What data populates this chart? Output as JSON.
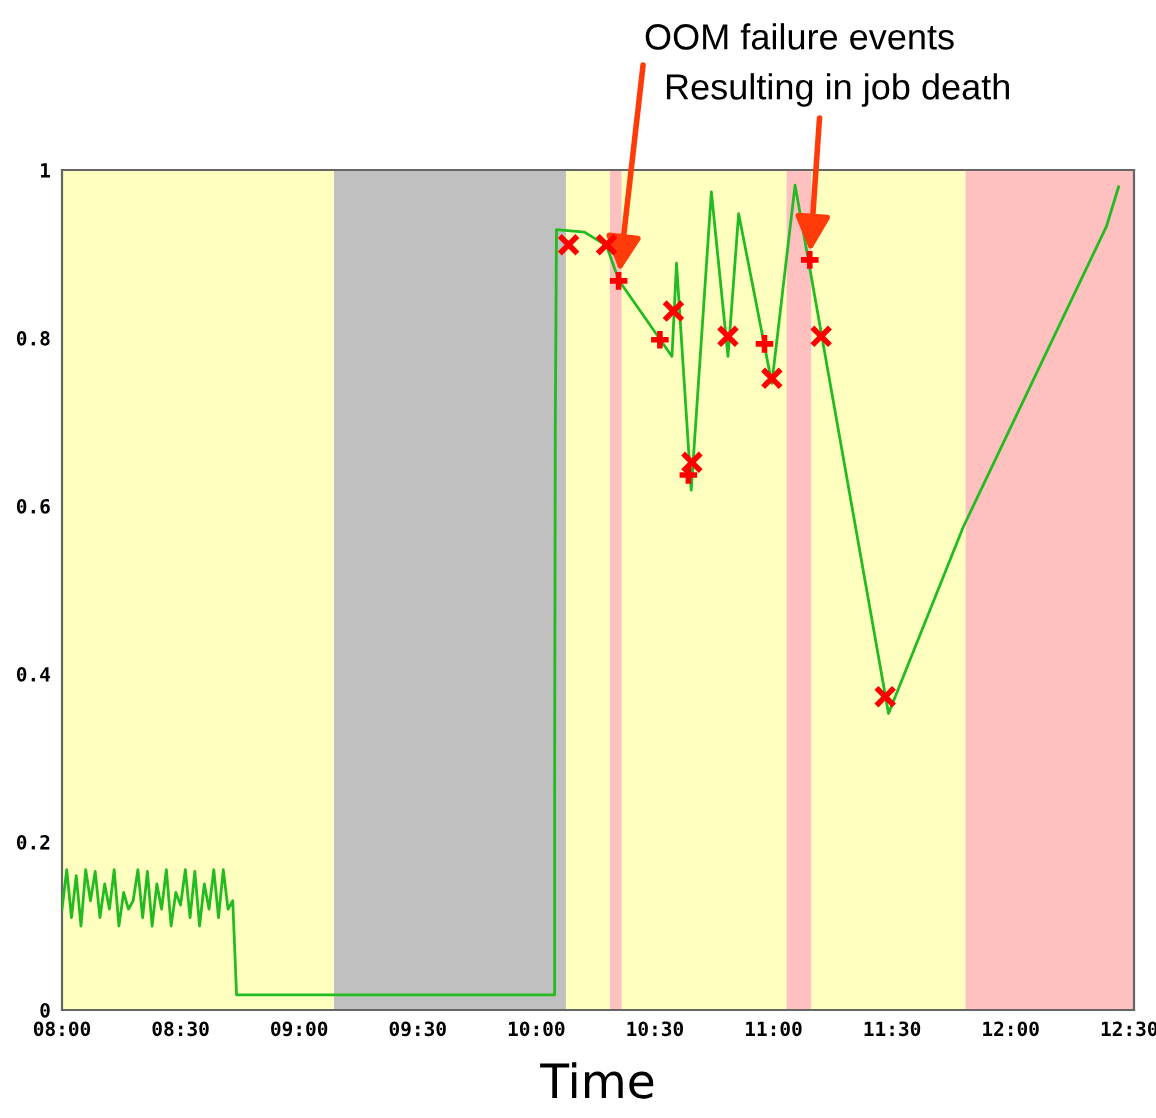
{
  "chart_data": {
    "type": "line",
    "xlabel": "Time",
    "xlim": [
      8,
      12.52
    ],
    "ylim": [
      0,
      1
    ],
    "xticks": [
      {
        "value": 8,
        "label": "08:00"
      },
      {
        "value": 8.5,
        "label": "08:30"
      },
      {
        "value": 9,
        "label": "09:00"
      },
      {
        "value": 9.5,
        "label": "09:30"
      },
      {
        "value": 10,
        "label": "10:00"
      },
      {
        "value": 10.5,
        "label": "10:30"
      },
      {
        "value": 11,
        "label": "11:00"
      },
      {
        "value": 11.5,
        "label": "11:30"
      },
      {
        "value": 12,
        "label": "12:00"
      },
      {
        "value": 12.5,
        "label": "12:30"
      }
    ],
    "yticks": [
      0,
      0.2,
      0.4,
      0.6,
      0.8,
      1
    ],
    "grid": false,
    "legend": false,
    "series": [
      {
        "color": "#22bb22",
        "marker": "none",
        "x": [
          8.0,
          8.02,
          8.04,
          8.06,
          8.08,
          8.1,
          8.12,
          8.14,
          8.16,
          8.18,
          8.2,
          8.22,
          8.24,
          8.26,
          8.28,
          8.3,
          8.32,
          8.34,
          8.36,
          8.38,
          8.4,
          8.42,
          8.44,
          8.46,
          8.48,
          8.5,
          8.52,
          8.54,
          8.56,
          8.58,
          8.6,
          8.62,
          8.64,
          8.66,
          8.68,
          8.7,
          8.72,
          8.736,
          10.077,
          10.077,
          10.08,
          10.085,
          10.203,
          10.296,
          10.347,
          10.572,
          10.591,
          10.653,
          10.738,
          10.808,
          10.853,
          10.993,
          11.091,
          11.485,
          11.8,
          12.404,
          12.455
        ],
        "values": [
          0.12,
          0.167,
          0.11,
          0.16,
          0.1,
          0.167,
          0.13,
          0.165,
          0.11,
          0.15,
          0.12,
          0.167,
          0.1,
          0.14,
          0.12,
          0.13,
          0.167,
          0.11,
          0.165,
          0.1,
          0.15,
          0.12,
          0.167,
          0.1,
          0.14,
          0.125,
          0.167,
          0.11,
          0.165,
          0.1,
          0.15,
          0.12,
          0.167,
          0.11,
          0.167,
          0.12,
          0.13,
          0.018,
          0.018,
          0.246,
          0.698,
          0.929,
          0.926,
          0.91,
          0.869,
          0.778,
          0.889,
          0.619,
          0.974,
          0.778,
          0.948,
          0.746,
          0.982,
          0.353,
          0.575,
          0.933,
          0.98
        ]
      },
      {
        "type": "scatter",
        "color": "#ff0000",
        "marker": "cross",
        "x": [
          10.136,
          10.296,
          10.578,
          10.656,
          10.808,
          10.993,
          11.201,
          11.471
        ],
        "values": [
          0.911,
          0.911,
          0.832,
          0.652,
          0.802,
          0.752,
          0.802,
          0.373
        ]
      },
      {
        "type": "scatter",
        "color": "#ff0000",
        "marker": "plus",
        "x": [
          10.347,
          10.521,
          10.641,
          10.962,
          11.153
        ],
        "values": [
          0.868,
          0.798,
          0.637,
          0.793,
          0.893
        ]
      }
    ],
    "bands": [
      {
        "axis": "x",
        "from": 8,
        "to": 9.147,
        "color": "#ffffc0"
      },
      {
        "axis": "x",
        "from": 9.147,
        "to": 10.125,
        "color": "#c0c0c0"
      },
      {
        "axis": "x",
        "from": 10.125,
        "to": 10.31,
        "color": "#ffffc0"
      },
      {
        "axis": "x",
        "from": 10.31,
        "to": 10.36,
        "color": "#ffc0c0"
      },
      {
        "axis": "x",
        "from": 10.36,
        "to": 11.055,
        "color": "#ffffc0"
      },
      {
        "axis": "x",
        "from": 11.055,
        "to": 11.16,
        "color": "#ffc0c0"
      },
      {
        "axis": "x",
        "from": 11.16,
        "to": 11.81,
        "color": "#ffffc0"
      },
      {
        "axis": "x",
        "from": 11.81,
        "to": 12.52,
        "color": "#ffc0c0"
      }
    ],
    "annotations": [
      {
        "text": "OOM failure events",
        "x": 10.347,
        "y": 0.869
      },
      {
        "text": "Resulting in job death",
        "x": 11.153,
        "y": 0.893
      }
    ]
  }
}
